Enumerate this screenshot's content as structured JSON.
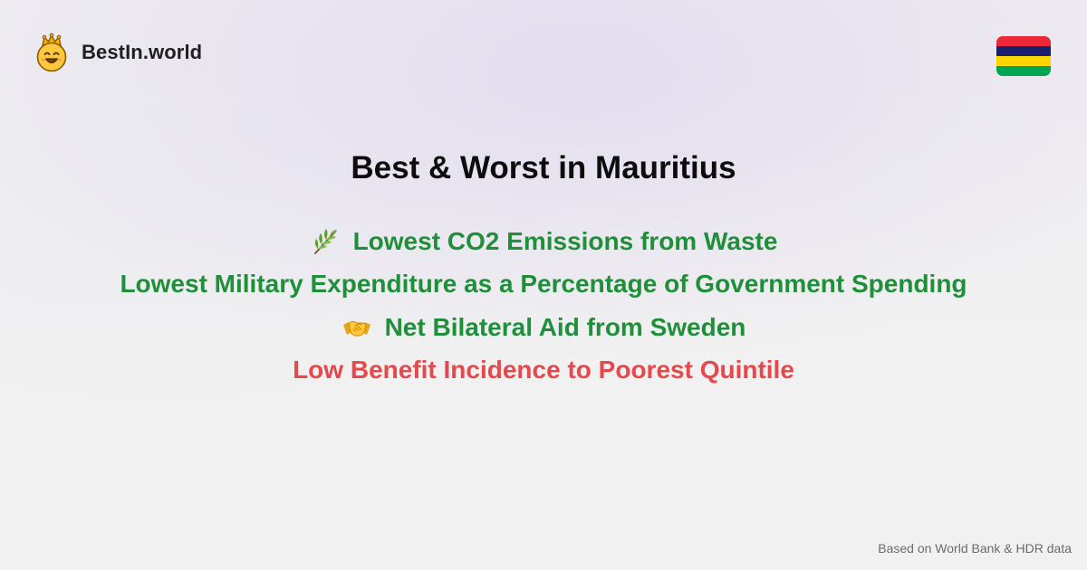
{
  "brand": {
    "name": "BestIn.world",
    "logo_icon": "crowned-smiley-icon"
  },
  "flag": {
    "country": "Mauritius",
    "icon": "mauritius-flag-icon",
    "stripes": [
      "#EA2839",
      "#1A206D",
      "#FFD500",
      "#00A551"
    ]
  },
  "title": "Best & Worst in Mauritius",
  "items": [
    {
      "label": "Lowest CO2 Emissions from Waste",
      "icon": "herb-icon",
      "tone": "best",
      "color": "#1F8F3A"
    },
    {
      "label": "Lowest Military Expenditure as a Percentage of Government Spending",
      "icon": "",
      "tone": "best",
      "color": "#1F8F3A"
    },
    {
      "label": "Net Bilateral Aid from Sweden",
      "icon": "handshake-icon",
      "tone": "best",
      "color": "#1F8F3A"
    },
    {
      "label": "Low Benefit Incidence to Poorest Quintile",
      "icon": "",
      "tone": "worst",
      "color": "#E5484D"
    }
  ],
  "footer": {
    "source_text": "Based on World Bank & HDR data"
  }
}
